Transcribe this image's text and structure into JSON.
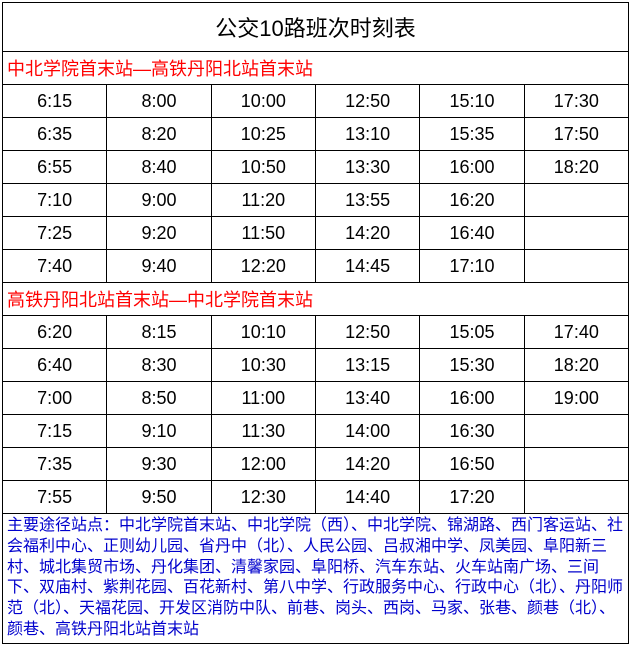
{
  "title": "公交10路班次时刻表",
  "route1": {
    "header": "中北学院首末站—高铁丹阳北站首末站",
    "rows": [
      [
        "6:15",
        "8:00",
        "10:00",
        "12:50",
        "15:10",
        "17:30"
      ],
      [
        "6:35",
        "8:20",
        "10:25",
        "13:10",
        "15:35",
        "17:50"
      ],
      [
        "6:55",
        "8:40",
        "10:50",
        "13:30",
        "16:00",
        "18:20"
      ],
      [
        "7:10",
        "9:00",
        "11:20",
        "13:55",
        "16:20",
        ""
      ],
      [
        "7:25",
        "9:20",
        "11:50",
        "14:20",
        "16:40",
        ""
      ],
      [
        "7:40",
        "9:40",
        "12:20",
        "14:45",
        "17:10",
        ""
      ]
    ]
  },
  "route2": {
    "header": "高铁丹阳北站首末站—中北学院首末站",
    "rows": [
      [
        "6:20",
        "8:15",
        "10:10",
        "12:50",
        "15:05",
        "17:40"
      ],
      [
        "6:40",
        "8:30",
        "10:30",
        "13:15",
        "15:30",
        "18:20"
      ],
      [
        "7:00",
        "8:50",
        "11:00",
        "13:40",
        "16:00",
        "19:00"
      ],
      [
        "7:15",
        "9:10",
        "11:30",
        "14:00",
        "16:30",
        ""
      ],
      [
        "7:35",
        "9:30",
        "12:00",
        "14:20",
        "16:50",
        ""
      ],
      [
        "7:55",
        "9:50",
        "12:30",
        "14:40",
        "17:20",
        ""
      ]
    ]
  },
  "footer": "主要途径站点：中北学院首末站、中北学院（西）、中北学院、锦湖路、西门客运站、社会福利中心、正则幼儿园、省丹中（北）、人民公园、吕叔湘中学、凤美园、阜阳新三村、城北集贸市场、丹化集团、清馨家园、阜阳桥、汽车东站、火车站南广场、三间下、双庙村、紫荆花园、百花新村、第八中学、行政服务中心、行政中心（北）、丹阳师范（北）、天福花园、开发区消防中队、前巷、岗头、西岗、马家、张巷、颜巷（北）、颜巷、高铁丹阳北站首末站",
  "style": {
    "title_color": "#000000",
    "route_color": "#ff0000",
    "time_color": "#000000",
    "footer_color": "#0000cc",
    "border_color": "#000000",
    "background": "#ffffff",
    "columns": 6,
    "title_fontsize": 22,
    "route_fontsize": 18,
    "time_fontsize": 18,
    "footer_fontsize": 16
  }
}
